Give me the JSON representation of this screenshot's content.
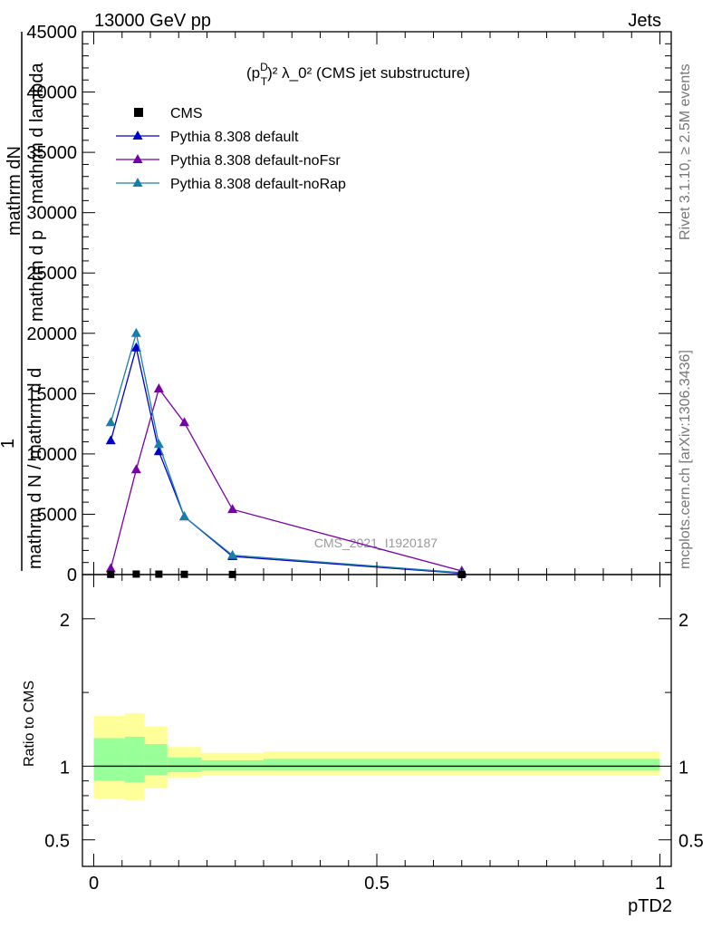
{
  "header": {
    "energy_label": "13000 GeV pp",
    "process_label": "Jets",
    "rivet_label": "Rivet 3.1.10, ≥ 2.5M events",
    "mcplots_label": "mcplots.cern.ch [arXiv:1306.3436]",
    "watermark": "CMS_2021_I1920187"
  },
  "chart_data": [
    {
      "type": "line",
      "title_main": "(p",
      "title_sub": "T",
      "title_sup": "D",
      "title_rest": ")² λ_0² (CMS jet substructure)",
      "ylabel_top": "mathrm dN",
      "ylabel_upper": "mathrm d p",
      "ylabel_mid": "mathrm d lambda",
      "ylabel_one": "1",
      "ylabel_bottom": "mathrm d N / mathrm d d",
      "ylim": [
        0,
        45000
      ],
      "xlim": [
        -0.02,
        1.02
      ],
      "y_ticks": [
        "0",
        "5000",
        "10000",
        "15000",
        "20000",
        "25000",
        "30000",
        "35000",
        "40000",
        "45000"
      ],
      "y_tick_values": [
        0,
        5000,
        10000,
        15000,
        20000,
        25000,
        30000,
        35000,
        40000,
        45000
      ],
      "legend_position": "top-left",
      "data": {
        "name": "CMS",
        "color": "#000000",
        "x": [
          0.03,
          0.075,
          0.115,
          0.16,
          0.245,
          0.65
        ],
        "y": [
          15,
          40,
          35,
          20,
          10,
          1
        ]
      },
      "series": [
        {
          "name": "Pythia 8.308 default",
          "color": "#0000cc",
          "x": [
            0.03,
            0.075,
            0.115,
            0.16,
            0.245,
            0.65
          ],
          "y": [
            11100,
            18800,
            10200,
            4800,
            1500,
            100
          ]
        },
        {
          "name": "Pythia 8.308 default-noFsr",
          "color": "#7700aa",
          "x": [
            0.03,
            0.075,
            0.115,
            0.16,
            0.245,
            0.65
          ],
          "y": [
            500,
            8700,
            15400,
            12600,
            5400,
            300
          ]
        },
        {
          "name": "Pythia 8.308 default-noRap",
          "color": "#1a7fa8",
          "x": [
            0.03,
            0.075,
            0.115,
            0.16,
            0.245,
            0.65
          ],
          "y": [
            12600,
            20000,
            10800,
            4800,
            1600,
            150
          ]
        }
      ]
    },
    {
      "type": "area",
      "ylabel": "Ratio to CMS",
      "xlabel": "pTD2",
      "xlim": [
        -0.02,
        1.02
      ],
      "ylim": [
        0.32,
        2.3
      ],
      "y_ticks": [
        "0.5",
        "1",
        "2"
      ],
      "y_tick_values": [
        0.5,
        1,
        2
      ],
      "x_ticks": [
        "0",
        "0.5",
        "1"
      ],
      "x_tick_values": [
        0,
        0.5,
        1
      ],
      "bins": [
        0,
        0.055,
        0.09,
        0.13,
        0.19,
        0.3,
        1.0
      ],
      "yellow_low": [
        0.78,
        0.77,
        0.85,
        0.92,
        0.94,
        0.94
      ],
      "yellow_high": [
        1.34,
        1.36,
        1.27,
        1.13,
        1.09,
        1.1
      ],
      "green_low": [
        0.9,
        0.89,
        0.94,
        0.96,
        0.97,
        0.97
      ],
      "green_high": [
        1.19,
        1.2,
        1.15,
        1.06,
        1.04,
        1.05
      ],
      "yellow_color": "#ffff99",
      "green_color": "#99ff99"
    }
  ]
}
